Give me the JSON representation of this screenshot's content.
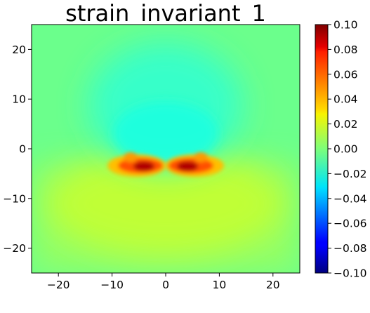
{
  "chart_data": {
    "type": "heatmap",
    "title": "strain_invariant_1",
    "xlim": [
      -25,
      25
    ],
    "ylim": [
      -25,
      25
    ],
    "x_ticks": [
      -20,
      -10,
      0,
      10,
      20
    ],
    "y_ticks": [
      -20,
      -10,
      0,
      10,
      20
    ],
    "colormap": "jet",
    "colorbar": {
      "range": [
        -0.1,
        0.1
      ],
      "ticks": [
        "0.10",
        "0.08",
        "0.06",
        "0.04",
        "0.02",
        "0.00",
        "-0.02",
        "-0.04",
        "-0.06",
        "-0.08",
        "-0.10"
      ]
    },
    "field_features": [
      {
        "x": 0,
        "y": 7,
        "value": -0.025
      },
      {
        "x": -4,
        "y": -1.5,
        "value": 0.1
      },
      {
        "x": 4,
        "y": -1.5,
        "value": 0.1
      },
      {
        "x": 0,
        "y": -7,
        "value": 0.02
      }
    ],
    "background_value": 0.0
  }
}
